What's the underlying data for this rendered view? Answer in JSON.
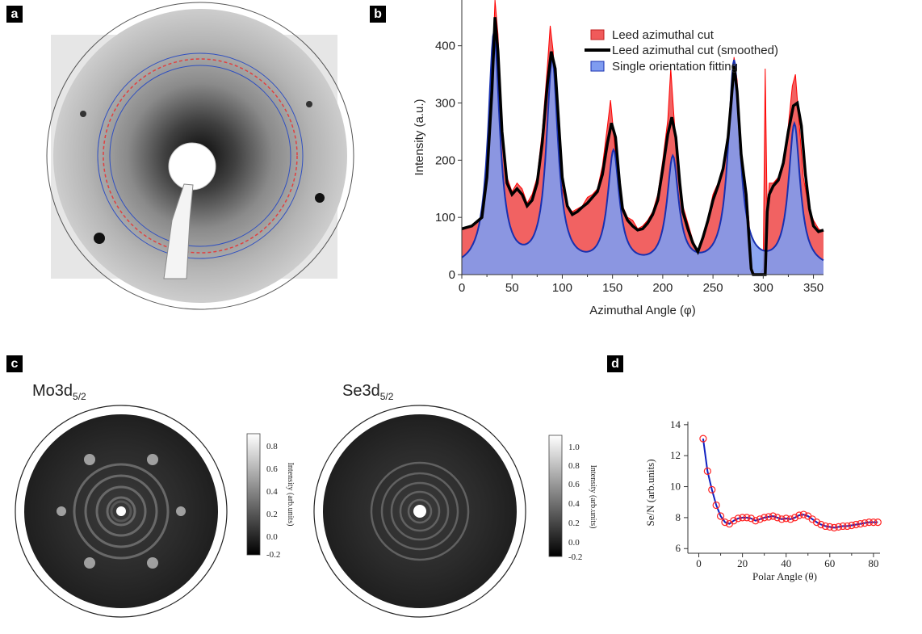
{
  "panels": {
    "a": "a",
    "b": "b",
    "c": "c",
    "d": "d"
  },
  "chart_data": [
    {
      "panel": "b",
      "type": "area",
      "xlabel": "Azimuthal Angle (φ)",
      "ylabel": "Intensity (a.u.)",
      "xlim": [
        0,
        360
      ],
      "ylim": [
        0,
        480
      ],
      "xticks": [
        "0",
        "50",
        "100",
        "150",
        "200",
        "250",
        "300",
        "350"
      ],
      "yticks": [
        "0",
        "100",
        "200",
        "300",
        "400"
      ],
      "legend_position": "top-right",
      "series": [
        {
          "name": "Leed azimuthal cut",
          "color": "#f05a5a",
          "line_color": "#ff0000",
          "x": [
            0,
            10,
            20,
            25,
            30,
            33,
            36,
            40,
            45,
            50,
            55,
            60,
            65,
            70,
            75,
            80,
            85,
            88,
            91,
            95,
            100,
            105,
            110,
            115,
            120,
            125,
            130,
            135,
            140,
            145,
            148,
            151,
            155,
            160,
            165,
            170,
            175,
            180,
            185,
            190,
            195,
            200,
            205,
            208,
            211,
            215,
            220,
            225,
            230,
            235,
            240,
            245,
            250,
            255,
            260,
            265,
            268,
            271,
            274,
            278,
            283,
            286,
            289,
            292,
            296,
            300,
            302,
            304,
            306,
            310,
            315,
            320,
            325,
            329,
            332,
            336,
            340,
            345,
            350,
            355,
            360
          ],
          "values": [
            80,
            85,
            100,
            180,
            330,
            480,
            420,
            260,
            170,
            145,
            160,
            150,
            125,
            140,
            170,
            250,
            360,
            435,
            390,
            240,
            150,
            120,
            110,
            115,
            120,
            135,
            140,
            150,
            190,
            260,
            305,
            250,
            170,
            120,
            100,
            95,
            80,
            85,
            95,
            110,
            140,
            200,
            270,
            360,
            280,
            180,
            120,
            90,
            60,
            40,
            70,
            100,
            140,
            160,
            190,
            250,
            320,
            380,
            340,
            220,
            150,
            90,
            10,
            0,
            0,
            10,
            360,
            100,
            160,
            160,
            170,
            200,
            260,
            330,
            350,
            260,
            170,
            120,
            95,
            80,
            75
          ]
        },
        {
          "name": "Leed azimuthal cut (smoothed)",
          "color": "#000000",
          "x": [
            0,
            10,
            20,
            25,
            30,
            33,
            36,
            40,
            45,
            50,
            55,
            60,
            65,
            70,
            75,
            80,
            85,
            89,
            93,
            97,
            100,
            105,
            110,
            115,
            120,
            125,
            130,
            135,
            140,
            145,
            149,
            153,
            157,
            160,
            165,
            170,
            175,
            180,
            185,
            190,
            195,
            200,
            205,
            209,
            213,
            217,
            220,
            225,
            230,
            235,
            240,
            245,
            250,
            255,
            260,
            265,
            268,
            271,
            274,
            278,
            283,
            286,
            288,
            290,
            293,
            296,
            300,
            302,
            304,
            306,
            310,
            315,
            320,
            325,
            330,
            334,
            338,
            342,
            346,
            350,
            355,
            360
          ],
          "values": [
            80,
            85,
            100,
            170,
            320,
            450,
            390,
            250,
            160,
            140,
            150,
            140,
            120,
            130,
            160,
            230,
            330,
            390,
            360,
            250,
            170,
            120,
            105,
            110,
            118,
            125,
            135,
            145,
            175,
            230,
            265,
            240,
            160,
            115,
            95,
            85,
            78,
            80,
            90,
            105,
            130,
            185,
            245,
            275,
            240,
            160,
            110,
            80,
            55,
            40,
            65,
            95,
            130,
            155,
            185,
            240,
            300,
            365,
            320,
            210,
            140,
            60,
            10,
            0,
            0,
            0,
            0,
            0,
            110,
            140,
            155,
            165,
            195,
            250,
            295,
            300,
            260,
            175,
            115,
            85,
            75,
            78
          ]
        },
        {
          "name": "Single orientation fitting",
          "color": "#7f9cf0",
          "line_color": "#1830b0",
          "peaks": [
            {
              "center": 32,
              "height": 410
            },
            {
              "center": 90,
              "height": 360
            },
            {
              "center": 151,
              "height": 200
            },
            {
              "center": 210,
              "height": 190
            },
            {
              "center": 271,
              "height": 360
            },
            {
              "center": 331,
              "height": 250
            }
          ],
          "baseline": 8
        }
      ]
    },
    {
      "panel": "d",
      "type": "scatter",
      "xlabel": "Polar Angle (θ)",
      "ylabel": "Se/N (arb.units)",
      "xlim": [
        -5,
        83
      ],
      "ylim": [
        5.7,
        14.2
      ],
      "xticks": [
        0,
        20,
        40,
        60,
        80
      ],
      "yticks": [
        6,
        8,
        10,
        12,
        14
      ],
      "series": [
        {
          "name": "",
          "marker_color": "#ff2020",
          "line_color": "#1020c0",
          "x": [
            2,
            4,
            6,
            8,
            10,
            12,
            14,
            16,
            18,
            20,
            22,
            24,
            26,
            28,
            30,
            32,
            34,
            36,
            38,
            40,
            42,
            44,
            46,
            48,
            50,
            52,
            54,
            56,
            58,
            60,
            62,
            64,
            66,
            68,
            70,
            72,
            74,
            76,
            78,
            80,
            82
          ],
          "y": [
            13.1,
            11.0,
            9.8,
            8.8,
            8.1,
            7.7,
            7.6,
            7.8,
            7.95,
            8.0,
            8.0,
            7.95,
            7.8,
            7.9,
            8.0,
            8.05,
            8.1,
            8.0,
            7.9,
            7.95,
            7.9,
            8.0,
            8.15,
            8.2,
            8.1,
            7.9,
            7.7,
            7.55,
            7.45,
            7.4,
            7.35,
            7.4,
            7.45,
            7.45,
            7.5,
            7.55,
            7.6,
            7.65,
            7.7,
            7.7,
            7.7
          ]
        }
      ]
    }
  ],
  "panel_a": {
    "ring_color_outer": "#3050c0",
    "ring_color_dash": "#e04040"
  },
  "panel_c": {
    "maps": [
      {
        "title_main": "Mo3d",
        "title_sub": "5/2",
        "colorbar_label": "Intensity (arb.units)",
        "colorbar_ticks": [
          "0.8",
          "0.6",
          "0.4",
          "0.2",
          "0.0",
          "-0.2"
        ]
      },
      {
        "title_main": "Se3d",
        "title_sub": "5/2",
        "colorbar_label": "Intensity (arb.units)",
        "colorbar_ticks": [
          "1.0",
          "0.8",
          "0.6",
          "0.4",
          "0.2",
          "0.0",
          "-0.2"
        ]
      }
    ]
  }
}
